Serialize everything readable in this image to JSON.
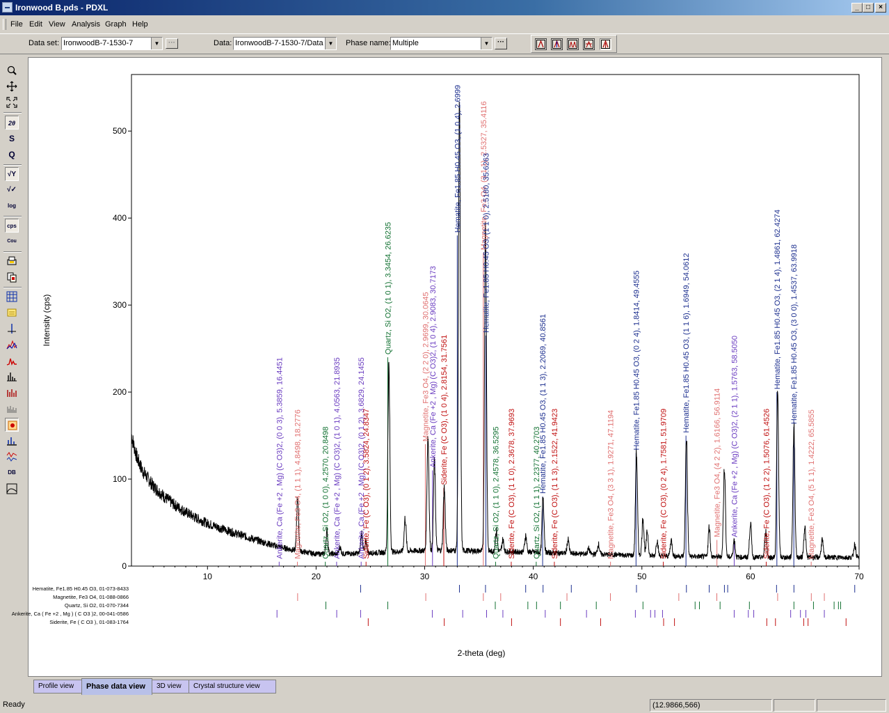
{
  "window": {
    "title": "Ironwood B.pds - PDXL",
    "minimize": "_",
    "restore": "□",
    "close": "×"
  },
  "menu": [
    "File",
    "Edit",
    "View",
    "Analysis",
    "Graph",
    "Help"
  ],
  "toolbar": {
    "dataset_label": "Data set:",
    "dataset_value": "IronwoodB-7-1530-7",
    "data_label": "Data:",
    "data_value": "IronwoodB-7-1530-7/Data",
    "phase_label": "Phase name:",
    "phase_value": "Multiple"
  },
  "left_tools": [
    {
      "icon": "zoom-icon",
      "label": ""
    },
    {
      "icon": "move-icon",
      "label": ""
    },
    {
      "icon": "fit-icon",
      "label": ""
    },
    {
      "icon": "two-theta-icon",
      "label": "2θ"
    },
    {
      "icon": "s-axis-icon",
      "label": "S"
    },
    {
      "icon": "q-axis-icon",
      "label": "Q"
    },
    {
      "icon": "sqrt-y-icon",
      "label": "√Y"
    },
    {
      "icon": "sqrt-check-icon",
      "label": "√✓"
    },
    {
      "icon": "log-icon",
      "label": "log"
    },
    {
      "icon": "cps-icon",
      "label": "cps"
    },
    {
      "icon": "counts-icon",
      "label": "Cou"
    },
    {
      "icon": "print-icon",
      "label": ""
    },
    {
      "icon": "copy-icon",
      "label": ""
    },
    {
      "icon": "grid-icon",
      "label": ""
    },
    {
      "icon": "note-icon",
      "label": ""
    },
    {
      "icon": "cursor-line-icon",
      "label": ""
    },
    {
      "icon": "overlay-icon",
      "label": ""
    },
    {
      "icon": "profile-icon",
      "label": ""
    },
    {
      "icon": "peak-bars-icon",
      "label": ""
    },
    {
      "icon": "card-bars-icon",
      "label": ""
    },
    {
      "icon": "pattern-icon",
      "label": ""
    },
    {
      "icon": "highlight-icon",
      "label": ""
    },
    {
      "icon": "peak-list-icon",
      "label": ""
    },
    {
      "icon": "diff-icon",
      "label": ""
    },
    {
      "icon": "db-icon",
      "label": "DB"
    },
    {
      "icon": "bg-icon",
      "label": ""
    }
  ],
  "chart_data": {
    "type": "line",
    "xlabel": "2-theta (deg)",
    "ylabel": "Intensity (cps)",
    "xlim": [
      3,
      70
    ],
    "ylim": [
      0,
      565
    ],
    "xticks": [
      10,
      20,
      30,
      40,
      50,
      60,
      70
    ],
    "yticks": [
      0,
      100,
      200,
      300,
      400,
      500
    ],
    "grid": false,
    "background": [
      {
        "x": 3.0,
        "y": 150
      },
      {
        "x": 3.5,
        "y": 125
      },
      {
        "x": 4.0,
        "y": 110
      },
      {
        "x": 5.0,
        "y": 92
      },
      {
        "x": 6.0,
        "y": 80
      },
      {
        "x": 7.0,
        "y": 70
      },
      {
        "x": 8.0,
        "y": 62
      },
      {
        "x": 9.0,
        "y": 55
      },
      {
        "x": 10.0,
        "y": 49
      },
      {
        "x": 12.0,
        "y": 40
      },
      {
        "x": 14.0,
        "y": 32
      },
      {
        "x": 16.0,
        "y": 24
      },
      {
        "x": 18.0,
        "y": 18
      },
      {
        "x": 20.0,
        "y": 14
      },
      {
        "x": 22.0,
        "y": 14
      },
      {
        "x": 25.0,
        "y": 15
      },
      {
        "x": 28.0,
        "y": 17
      },
      {
        "x": 30.0,
        "y": 18
      },
      {
        "x": 33.0,
        "y": 18
      },
      {
        "x": 36.0,
        "y": 17
      },
      {
        "x": 40.0,
        "y": 16
      },
      {
        "x": 45.0,
        "y": 14
      },
      {
        "x": 50.0,
        "y": 12
      },
      {
        "x": 55.0,
        "y": 11
      },
      {
        "x": 60.0,
        "y": 10
      },
      {
        "x": 65.0,
        "y": 10
      },
      {
        "x": 70.0,
        "y": 10
      }
    ],
    "peaks": [
      {
        "x": 18.3,
        "y": 80
      },
      {
        "x": 21.0,
        "y": 40
      },
      {
        "x": 22.2,
        "y": 22
      },
      {
        "x": 24.2,
        "y": 38
      },
      {
        "x": 24.6,
        "y": 28
      },
      {
        "x": 26.7,
        "y": 230
      },
      {
        "x": 28.2,
        "y": 55
      },
      {
        "x": 30.3,
        "y": 150
      },
      {
        "x": 30.9,
        "y": 120
      },
      {
        "x": 31.8,
        "y": 90
      },
      {
        "x": 33.2,
        "y": 530
      },
      {
        "x": 35.6,
        "y": 390
      },
      {
        "x": 36.6,
        "y": 40
      },
      {
        "x": 37.2,
        "y": 30
      },
      {
        "x": 39.3,
        "y": 35
      },
      {
        "x": 40.9,
        "y": 80
      },
      {
        "x": 43.2,
        "y": 30
      },
      {
        "x": 45.1,
        "y": 20
      },
      {
        "x": 46.0,
        "y": 25
      },
      {
        "x": 49.5,
        "y": 130
      },
      {
        "x": 50.1,
        "y": 55
      },
      {
        "x": 50.5,
        "y": 40
      },
      {
        "x": 51.4,
        "y": 30
      },
      {
        "x": 52.7,
        "y": 30
      },
      {
        "x": 54.1,
        "y": 150
      },
      {
        "x": 56.2,
        "y": 45
      },
      {
        "x": 57.6,
        "y": 115
      },
      {
        "x": 58.5,
        "y": 30
      },
      {
        "x": 60.0,
        "y": 50
      },
      {
        "x": 61.4,
        "y": 40
      },
      {
        "x": 62.5,
        "y": 200
      },
      {
        "x": 64.0,
        "y": 160
      },
      {
        "x": 65.0,
        "y": 45
      },
      {
        "x": 66.6,
        "y": 30
      },
      {
        "x": 69.6,
        "y": 25
      }
    ],
    "phases": [
      {
        "name": "Hematite, Fe1.85 H0.45 O3, 01-073-8433",
        "color": "#1c2f8f"
      },
      {
        "name": "Magnetite, Fe3 O4, 01-088-0866",
        "color": "#e07070"
      },
      {
        "name": "Quartz, Si O2, 01-070-7344",
        "color": "#107030"
      },
      {
        "name": "Ankerite, Ca ( Fe +2 , Mg ) ( C O3 )2, 00-041-0586",
        "color": "#6a3cc0"
      },
      {
        "name": "Siderite, Fe ( C O3 ), 01-083-1764",
        "color": "#c01010"
      }
    ],
    "peak_labels": [
      {
        "phase": 3,
        "x": 16.6,
        "y": 5,
        "text": "Ankerite, Ca (Fe +2 , Mg) (C O3)2, (0 0 3), 5.3859, 16.4451"
      },
      {
        "phase": 1,
        "x": 18.28,
        "y": 5,
        "text": "Magnetite, Fe3 O4, (1 1 1), 4.8498, 18.2776"
      },
      {
        "phase": 2,
        "x": 20.85,
        "y": 5,
        "text": "Quartz, Si O2, (1 0 0), 4.2570, 20.8498"
      },
      {
        "phase": 3,
        "x": 21.89,
        "y": 5,
        "text": "Ankerite, Ca (Fe +2 , Mg) (C O3)2, (1 0 1), 4.0563, 21.8935"
      },
      {
        "phase": 3,
        "x": 24.15,
        "y": 5,
        "text": "Ankerite, Ca (Fe +2 , Mg) (C O3)2, (0 1 2), 3.6829, 24.1455"
      },
      {
        "phase": 4,
        "x": 24.6,
        "y": 5,
        "text": "Siderite, Fe (C O3), (0 1 2), 3.5824, 24.8347"
      },
      {
        "phase": 2,
        "x": 26.6,
        "y": 240,
        "text": "Quartz, Si O2, (1 0 1), 3.3454, 26.6235"
      },
      {
        "phase": 1,
        "x": 30.06,
        "y": 140,
        "text": "Magnetite, Fe3 O4, (2 2 0), 2.9699, 30.0645"
      },
      {
        "phase": 3,
        "x": 30.72,
        "y": 110,
        "text": "Ankerite, Ca (Fe +2 , Mg) (C O3)2, (1 0 4), 2.9083, 30.7173"
      },
      {
        "phase": 4,
        "x": 31.76,
        "y": 90,
        "text": "Siderite, Fe (C O3), (1 0 4), 2.8154, 31.7561"
      },
      {
        "phase": 0,
        "x": 33.0,
        "y": 380,
        "text": "Hematite, Fe1.85 H0.45 O3, (1 0 4), 2.6999"
      },
      {
        "phase": 1,
        "x": 35.4,
        "y": 360,
        "text": "Magnetite, Fe3 O4, (3 1 1), 2.5327, 35.4116"
      },
      {
        "phase": 0,
        "x": 35.63,
        "y": 265,
        "text": "Hematite, Fe1.85 H0.45 O3, (1 1 0), 2.5180, 35.6263"
      },
      {
        "phase": 2,
        "x": 36.53,
        "y": 5,
        "text": "Quartz, Si O2, (1 1 0), 2.4578, 36.5295"
      },
      {
        "phase": 4,
        "x": 37.97,
        "y": 5,
        "text": "Siderite, Fe (C O3), (1 1 0), 2.3678, 37.9693"
      },
      {
        "phase": 2,
        "x": 40.27,
        "y": 5,
        "text": "Quartz, Si O2, (1 1 1), 2.2377, 40.2703"
      },
      {
        "phase": 0,
        "x": 40.86,
        "y": 80,
        "text": "Hematite, Fe1.85 H0.45 O3, (1 1 3), 2.2069, 40.8561"
      },
      {
        "phase": 4,
        "x": 41.94,
        "y": 5,
        "text": "Siderite, Fe (C O3), (1 1 3), 2.1522, 41.9423"
      },
      {
        "phase": 1,
        "x": 47.11,
        "y": 5,
        "text": "Magnetite, Fe3 O4, (3 3 1), 1.9271, 47.1194"
      },
      {
        "phase": 0,
        "x": 49.46,
        "y": 130,
        "text": "Hematite, Fe1.85 H0.45 O3, (0 2 4), 1.8414, 49.4555"
      },
      {
        "phase": 4,
        "x": 51.97,
        "y": 5,
        "text": "Siderite, Fe (C O3), (0 2 4), 1.7581, 51.9709"
      },
      {
        "phase": 0,
        "x": 54.06,
        "y": 150,
        "text": "Hematite, Fe1.85 H0.45 O3, (1 1 6), 1.6949, 54.0612"
      },
      {
        "phase": 1,
        "x": 56.91,
        "y": 30,
        "text": "Magnetite, Fe3 O4, (4 2 2), 1.6166, 56.9114"
      },
      {
        "phase": 3,
        "x": 58.5,
        "y": 30,
        "text": "Ankerite, Ca (Fe +2 , Mg) (C O3)2, (2 1 1), 1.5763, 58.5050"
      },
      {
        "phase": 0,
        "x": 62.43,
        "y": 200,
        "text": "Hematite, Fe1.85 H0.45 O3, (2 1 4), 1.4861, 62.4274"
      },
      {
        "phase": 0,
        "x": 63.99,
        "y": 160,
        "text": "Hematite, Fe1.85 H0.45 O3, (3 0 0), 1.4537, 63.9918"
      },
      {
        "phase": 4,
        "x": 61.45,
        "y": 5,
        "text": "Siderite, Fe (C O3), (1 2 2), 1.5076, 61.4526"
      },
      {
        "phase": 1,
        "x": 65.59,
        "y": 5,
        "text": "Magnetite, Fe3 O4, (5 1 1), 1.4222, 65.5855"
      }
    ],
    "phase_ticks": [
      [
        24.1,
        33.2,
        35.6,
        39.3,
        40.9,
        43.5,
        49.5,
        54.1,
        56.2,
        57.6,
        57.9,
        62.4,
        64.0,
        69.6
      ],
      [
        18.3,
        30.1,
        35.4,
        37.0,
        43.1,
        47.1,
        53.4,
        56.9,
        62.5,
        65.6,
        66.8
      ],
      [
        20.9,
        26.6,
        36.5,
        39.5,
        40.3,
        42.5,
        45.8,
        50.1,
        54.9,
        55.3,
        57.2,
        59.9,
        64.0,
        65.8,
        67.7,
        68.1,
        68.3
      ],
      [
        16.4,
        21.9,
        24.1,
        30.7,
        33.5,
        35.7,
        37.2,
        41.1,
        44.9,
        49.4,
        50.8,
        51.2,
        51.9,
        58.5,
        59.8,
        60.3,
        63.7,
        64.6,
        65.1,
        66.8
      ],
      [
        24.8,
        31.8,
        38.0,
        42.5,
        46.2,
        52.0,
        53.0,
        61.5,
        62.3,
        64.9,
        65.3,
        68.8
      ]
    ]
  },
  "tabs": [
    "Profile view",
    "Phase data view",
    "3D view",
    "Crystal structure view"
  ],
  "active_tab": "Phase data view",
  "status": {
    "ready": "Ready",
    "cursor": "(12.9866,566)"
  }
}
